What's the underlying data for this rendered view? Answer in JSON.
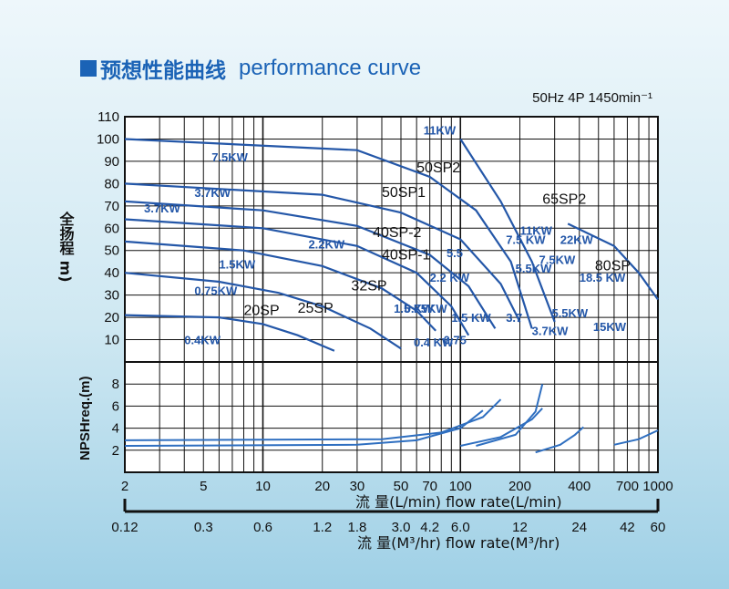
{
  "header": {
    "title_cn": "预想性能曲线",
    "title_en": "performance curve",
    "spec": "50Hz 4P 1450min⁻¹"
  },
  "chart_data": {
    "type": "line",
    "x_scale": "log",
    "xlim": [
      2,
      1000
    ],
    "head": {
      "ylabel": "全扬程 m)",
      "ylim": [
        0,
        110
      ],
      "yticks": [
        10,
        20,
        30,
        40,
        50,
        60,
        70,
        80,
        90,
        100,
        110
      ],
      "models": [
        {
          "name": "20SP",
          "points": [
            [
              2,
              21
            ],
            [
              6,
              20
            ],
            [
              10,
              17
            ],
            [
              15,
              12
            ],
            [
              23,
              5
            ]
          ]
        },
        {
          "name": "25SP",
          "points": [
            [
              2,
              40
            ],
            [
              6,
              36
            ],
            [
              12,
              31
            ],
            [
              20,
              25
            ],
            [
              35,
              15
            ],
            [
              50,
              6
            ]
          ]
        },
        {
          "name": "32SP",
          "points": [
            [
              2,
              54
            ],
            [
              8,
              50
            ],
            [
              20,
              43
            ],
            [
              40,
              33
            ],
            [
              60,
              23
            ],
            [
              75,
              14
            ]
          ]
        },
        {
          "name": "40SP-1",
          "points": [
            [
              2,
              64
            ],
            [
              10,
              60
            ],
            [
              30,
              52
            ],
            [
              60,
              40
            ],
            [
              90,
              25
            ],
            [
              110,
              12
            ]
          ]
        },
        {
          "name": "40SP-2",
          "points": [
            [
              2,
              72
            ],
            [
              10,
              68
            ],
            [
              30,
              61
            ],
            [
              70,
              48
            ],
            [
              110,
              34
            ],
            [
              150,
              15
            ]
          ]
        },
        {
          "name": "50SP1",
          "points": [
            [
              2,
              80
            ],
            [
              20,
              75
            ],
            [
              50,
              67
            ],
            [
              100,
              55
            ],
            [
              160,
              35
            ],
            [
              200,
              18
            ]
          ]
        },
        {
          "name": "50SP2",
          "points": [
            [
              2,
              100
            ],
            [
              30,
              95
            ],
            [
              70,
              83
            ],
            [
              120,
              68
            ],
            [
              180,
              45
            ],
            [
              230,
              15
            ]
          ]
        },
        {
          "name": "65SP2",
          "points": [
            [
              100,
              100
            ],
            [
              160,
              72
            ],
            [
              230,
              45
            ],
            [
              300,
              18
            ]
          ]
        },
        {
          "name": "80SP",
          "points": [
            [
              350,
              62
            ],
            [
              600,
              52
            ],
            [
              800,
              40
            ],
            [
              1000,
              28
            ]
          ]
        }
      ],
      "power_labels": [
        "11KW",
        "7.5KW",
        "3.7KW",
        "3.7KW",
        "2.2KW",
        "1.5KW",
        "0.75KW",
        "0.4KW",
        "5.5",
        "2.2 KW",
        "1.5 KW",
        "1.5 KW",
        "0.4 KW",
        "0.75KW",
        "0.75",
        "7.5 KW",
        "11KW",
        "5.5KW",
        "3.7",
        "7.5KW",
        "3.7KW",
        "5.5KW",
        "22KW",
        "18.5 KW",
        "15KW"
      ]
    },
    "npsh": {
      "ylabel": "NPSHreq.(m)",
      "ylim": [
        0,
        10
      ],
      "yticks": [
        2,
        4,
        6,
        8
      ],
      "curves": [
        {
          "name": "50SP1",
          "points": [
            [
              2,
              2.4
            ],
            [
              30,
              2.5
            ],
            [
              60,
              2.9
            ],
            [
              100,
              4.0
            ],
            [
              130,
              5.6
            ]
          ]
        },
        {
          "name": "40SP-2",
          "points": [
            [
              2,
              2.9
            ],
            [
              40,
              3.0
            ],
            [
              80,
              3.6
            ],
            [
              130,
              5.0
            ],
            [
              160,
              6.6
            ]
          ]
        },
        {
          "name": "50SP2",
          "points": [
            [
              100,
              2.4
            ],
            [
              160,
              3.2
            ],
            [
              230,
              4.8
            ],
            [
              260,
              5.8
            ]
          ]
        },
        {
          "name": "65SP2",
          "points": [
            [
              120,
              2.4
            ],
            [
              190,
              3.4
            ],
            [
              240,
              5.5
            ],
            [
              260,
              8.0
            ]
          ]
        },
        {
          "name": "",
          "points": [
            [
              240,
              1.8
            ],
            [
              320,
              2.5
            ],
            [
              380,
              3.4
            ],
            [
              420,
              4.1
            ]
          ]
        },
        {
          "name": "80SP",
          "points": [
            [
              600,
              2.5
            ],
            [
              800,
              3.0
            ],
            [
              1000,
              3.8
            ]
          ]
        }
      ]
    },
    "x_axis_lmin": {
      "label": "流 量(L/min) flow rate(L/min)",
      "ticks": [
        {
          "v": 2,
          "t": "2"
        },
        {
          "v": 5,
          "t": "5"
        },
        {
          "v": 10,
          "t": "10"
        },
        {
          "v": 20,
          "t": "20"
        },
        {
          "v": 30,
          "t": "30"
        },
        {
          "v": 50,
          "t": "50"
        },
        {
          "v": 70,
          "t": "70"
        },
        {
          "v": 100,
          "t": "100"
        },
        {
          "v": 200,
          "t": "200"
        },
        {
          "v": 400,
          "t": "400"
        },
        {
          "v": 700,
          "t": "700"
        },
        {
          "v": 1000,
          "t": "1000"
        }
      ]
    },
    "x_axis_m3hr": {
      "label": "流 量(M³/hr) flow rate(M³/hr)",
      "ticks": [
        {
          "v": 2,
          "t": "0.12"
        },
        {
          "v": 5,
          "t": "0.3"
        },
        {
          "v": 10,
          "t": "0.6"
        },
        {
          "v": 20,
          "t": "1.2"
        },
        {
          "v": 30,
          "t": "1.8"
        },
        {
          "v": 50,
          "t": "3.0"
        },
        {
          "v": 70,
          "t": "4.2"
        },
        {
          "v": 100,
          "t": "6.0"
        },
        {
          "v": 200,
          "t": "12"
        },
        {
          "v": 400,
          "t": "24"
        },
        {
          "v": 700,
          "t": "42"
        },
        {
          "v": 1000,
          "t": "60"
        }
      ]
    }
  }
}
